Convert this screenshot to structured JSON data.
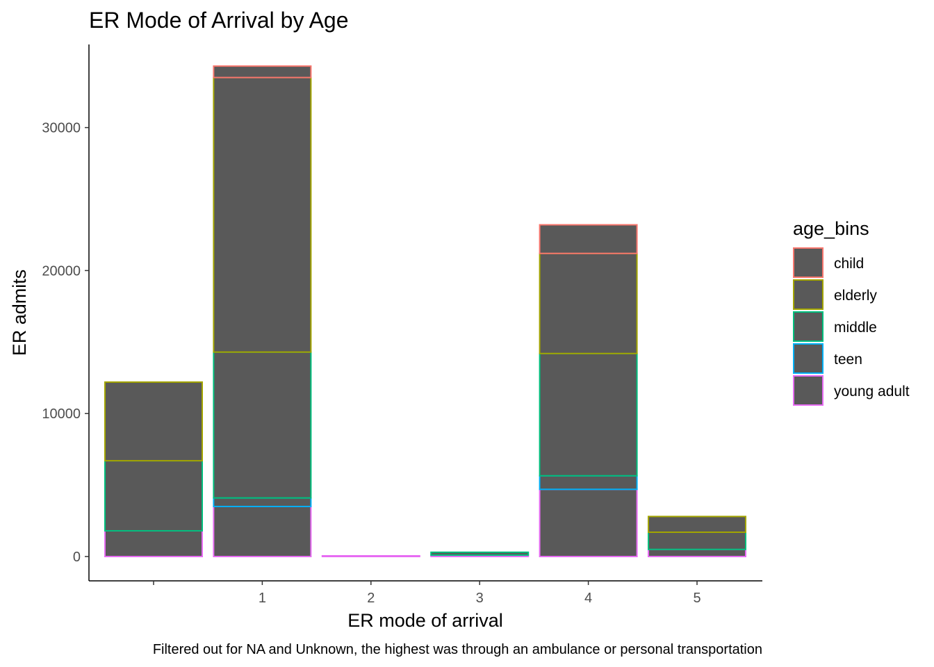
{
  "chart_data": {
    "type": "bar",
    "stacked": true,
    "title": "ER Mode of Arrival by Age",
    "xlabel": "ER mode of arrival",
    "ylabel": "ER admits",
    "caption": "Filtered out for NA and Unknown, the highest was through an ambulance or personal transportation",
    "categories": [
      "",
      "1",
      "2",
      "3",
      "4",
      "5"
    ],
    "ylim": [
      0,
      35000
    ],
    "yticks": [
      0,
      10000,
      20000,
      30000
    ],
    "fill_color": "#595959",
    "grid": false,
    "legend": {
      "title": "age_bins",
      "position": "right"
    },
    "series": [
      {
        "name": "young adult",
        "color": "#E76BF3",
        "values": [
          1800,
          3500,
          50,
          100,
          4700,
          500
        ]
      },
      {
        "name": "teen",
        "color": "#00B0F6",
        "values": [
          0,
          600,
          0,
          0,
          950,
          0
        ]
      },
      {
        "name": "middle",
        "color": "#00BF7D",
        "values": [
          4900,
          10200,
          0,
          200,
          8550,
          1200
        ]
      },
      {
        "name": "elderly",
        "color": "#A3A500",
        "values": [
          5500,
          19200,
          0,
          0,
          7000,
          1100
        ]
      },
      {
        "name": "child",
        "color": "#F8766D",
        "values": [
          0,
          800,
          0,
          0,
          2000,
          0
        ]
      }
    ],
    "legend_order": [
      "child",
      "elderly",
      "middle",
      "teen",
      "young adult"
    ]
  }
}
